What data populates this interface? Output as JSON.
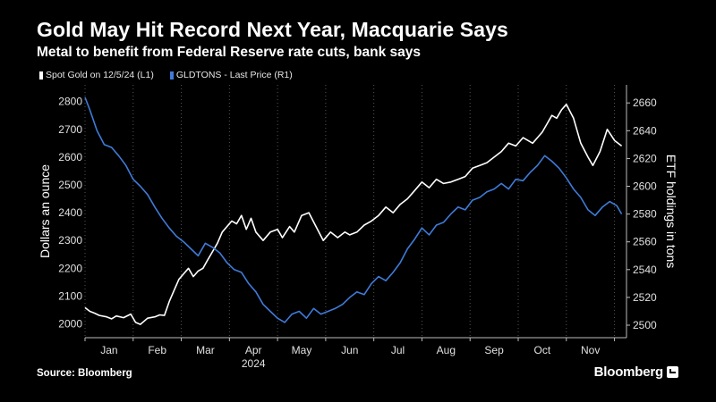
{
  "header": {
    "title": "Gold May Hit Record Next Year, Macquarie Says",
    "subtitle": "Metal to benefit from Federal Reserve rate cuts, bank says"
  },
  "legend": [
    {
      "label": "Spot Gold on 12/5/24 (L1)",
      "color": "#ffffff"
    },
    {
      "label": "GLDTONS - Last Price (R1)",
      "color": "#3f7bd9"
    }
  ],
  "footer": {
    "source": "Source: Bloomberg",
    "brand": "Bloomberg"
  },
  "chart_data": {
    "type": "line",
    "x_labels": [
      "Jan",
      "Feb",
      "Mar",
      "Apr",
      "May",
      "Jun",
      "Jul",
      "Aug",
      "Sep",
      "Oct",
      "Nov"
    ],
    "x_year_label": "2024",
    "ylabel_left": "Dollars an ounce",
    "ylabel_right": "ETF holdings in tons",
    "y_left_ticks": [
      2000,
      2100,
      2200,
      2300,
      2400,
      2500,
      2600,
      2700,
      2800
    ],
    "y_right_ticks": [
      2500,
      2520,
      2540,
      2560,
      2580,
      2600,
      2620,
      2640,
      2660
    ],
    "ylim_left": [
      1950,
      2860
    ],
    "ylim_right": [
      2491,
      2673
    ],
    "x_range": [
      1.0,
      12.25
    ],
    "grid": "vertical dotted",
    "legend_position": "top-left",
    "series": [
      {
        "name": "Spot Gold on 12/5/24 (L1)",
        "axis": "left",
        "color": "#ffffff",
        "x": [
          1.0,
          1.1,
          1.2,
          1.3,
          1.45,
          1.55,
          1.65,
          1.8,
          1.95,
          2.05,
          2.15,
          2.3,
          2.45,
          2.55,
          2.65,
          2.75,
          2.85,
          2.95,
          3.05,
          3.15,
          3.25,
          3.35,
          3.45,
          3.55,
          3.65,
          3.75,
          3.85,
          3.95,
          4.05,
          4.15,
          4.25,
          4.35,
          4.45,
          4.55,
          4.7,
          4.85,
          5.0,
          5.1,
          5.25,
          5.35,
          5.5,
          5.65,
          5.8,
          5.95,
          6.1,
          6.25,
          6.4,
          6.5,
          6.65,
          6.8,
          6.95,
          7.1,
          7.25,
          7.4,
          7.55,
          7.7,
          7.85,
          8.0,
          8.15,
          8.3,
          8.45,
          8.6,
          8.75,
          8.9,
          9.05,
          9.2,
          9.35,
          9.5,
          9.65,
          9.8,
          9.95,
          10.1,
          10.2,
          10.3,
          10.4,
          10.5,
          10.6,
          10.7,
          10.8,
          10.9,
          11.0,
          11.15,
          11.3,
          11.45,
          11.55,
          11.7,
          11.85,
          12.0,
          12.15
        ],
        "values": [
          2058,
          2045,
          2038,
          2030,
          2025,
          2018,
          2028,
          2022,
          2035,
          2005,
          1998,
          2020,
          2025,
          2032,
          2030,
          2080,
          2120,
          2160,
          2180,
          2200,
          2170,
          2190,
          2200,
          2230,
          2260,
          2290,
          2330,
          2350,
          2370,
          2360,
          2390,
          2340,
          2380,
          2330,
          2300,
          2330,
          2340,
          2310,
          2350,
          2330,
          2390,
          2400,
          2350,
          2300,
          2330,
          2310,
          2330,
          2320,
          2330,
          2355,
          2370,
          2390,
          2420,
          2400,
          2430,
          2450,
          2480,
          2510,
          2490,
          2520,
          2505,
          2510,
          2520,
          2530,
          2560,
          2570,
          2580,
          2600,
          2620,
          2650,
          2640,
          2670,
          2660,
          2650,
          2670,
          2690,
          2720,
          2750,
          2740,
          2770,
          2790,
          2740,
          2650,
          2600,
          2570,
          2620,
          2700,
          2660,
          2640
        ]
      },
      {
        "name": "GLDTONS - Last Price (R1)",
        "axis": "right",
        "color": "#3f7bd9",
        "x": [
          1.0,
          1.1,
          1.25,
          1.4,
          1.55,
          1.7,
          1.85,
          2.0,
          2.15,
          2.3,
          2.45,
          2.6,
          2.75,
          2.9,
          3.05,
          3.2,
          3.35,
          3.5,
          3.65,
          3.8,
          3.95,
          4.1,
          4.25,
          4.4,
          4.55,
          4.7,
          4.85,
          5.0,
          5.15,
          5.3,
          5.45,
          5.6,
          5.75,
          5.9,
          6.05,
          6.2,
          6.35,
          6.5,
          6.65,
          6.8,
          6.95,
          7.1,
          7.25,
          7.4,
          7.55,
          7.7,
          7.85,
          8.0,
          8.15,
          8.3,
          8.45,
          8.6,
          8.75,
          8.9,
          9.05,
          9.2,
          9.35,
          9.5,
          9.65,
          9.8,
          9.95,
          10.1,
          10.25,
          10.4,
          10.55,
          10.7,
          10.85,
          11.0,
          11.15,
          11.3,
          11.45,
          11.6,
          11.75,
          11.9,
          12.05,
          12.15
        ],
        "values": [
          2664,
          2655,
          2640,
          2630,
          2628,
          2622,
          2615,
          2605,
          2600,
          2594,
          2585,
          2577,
          2570,
          2564,
          2560,
          2555,
          2550,
          2559,
          2556,
          2552,
          2545,
          2540,
          2538,
          2530,
          2524,
          2515,
          2510,
          2505,
          2502,
          2508,
          2510,
          2505,
          2512,
          2508,
          2510,
          2512,
          2515,
          2520,
          2524,
          2522,
          2530,
          2535,
          2532,
          2538,
          2545,
          2555,
          2562,
          2570,
          2565,
          2572,
          2574,
          2580,
          2585,
          2583,
          2590,
          2592,
          2596,
          2598,
          2602,
          2598,
          2605,
          2604,
          2610,
          2615,
          2622,
          2618,
          2613,
          2606,
          2598,
          2592,
          2583,
          2579,
          2585,
          2589,
          2586,
          2580
        ]
      }
    ]
  }
}
